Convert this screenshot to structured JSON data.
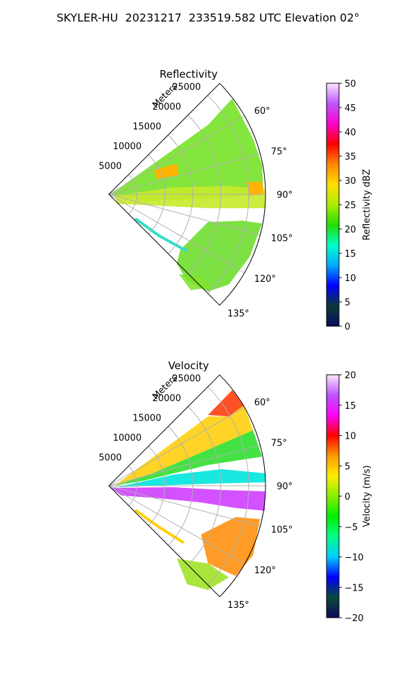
{
  "figure_title": "SKYLER-HU  20231217  233519.582 UTC Elevation 02°",
  "colors": {
    "grid": "#b0b0b0",
    "frame": "#000000"
  },
  "chart_data": [
    {
      "type": "polar-sector",
      "title": "Reflectivity",
      "radial_label": "Meters",
      "radial_ticks": [
        5000,
        10000,
        15000,
        20000,
        25000
      ],
      "radial_tick_labels": [
        "5000",
        "10000",
        "15000",
        "20000",
        "25000"
      ],
      "rmax": 28000,
      "angle_range": [
        45,
        135
      ],
      "angle_ticks": [
        60,
        75,
        90,
        105,
        120,
        135
      ],
      "angle_tick_labels": [
        "60°",
        "75°",
        "90°",
        "105°",
        "120°",
        "135°"
      ],
      "colorbar": {
        "label": "Reflectivity dBZ",
        "range": [
          0,
          50
        ],
        "ticks": [
          0,
          5,
          10,
          15,
          20,
          25,
          30,
          35,
          40,
          45,
          50
        ],
        "tick_labels": [
          "0",
          "5",
          "10",
          "15",
          "20",
          "25",
          "30",
          "35",
          "40",
          "45",
          "50"
        ],
        "stops": [
          "#0a0a5a",
          "#0a3a3a",
          "#0000ff",
          "#00aaff",
          "#00ffcc",
          "#22dd00",
          "#aaee00",
          "#ffdd00",
          "#ff8800",
          "#ff0000",
          "#ff00cc",
          "#bb55ff",
          "#ffe6ff"
        ]
      }
    },
    {
      "type": "polar-sector",
      "title": "Velocity",
      "radial_label": "Meters",
      "radial_ticks": [
        5000,
        10000,
        15000,
        20000,
        25000
      ],
      "radial_tick_labels": [
        "5000",
        "10000",
        "15000",
        "20000",
        "25000"
      ],
      "rmax": 28000,
      "angle_range": [
        45,
        135
      ],
      "angle_ticks": [
        60,
        75,
        90,
        105,
        120,
        135
      ],
      "angle_tick_labels": [
        "60°",
        "75°",
        "90°",
        "105°",
        "120°",
        "135°"
      ],
      "colorbar": {
        "label": "Velocity (m/s)",
        "range": [
          -20,
          20
        ],
        "ticks": [
          -20,
          -15,
          -10,
          -5,
          0,
          5,
          10,
          15,
          20
        ],
        "tick_labels": [
          "−20",
          "−15",
          "−10",
          "−5",
          "0",
          "5",
          "10",
          "15",
          "20"
        ],
        "stops": [
          "#0a0a5a",
          "#0a4a3a",
          "#0000ff",
          "#00ccff",
          "#00ff88",
          "#00ee00",
          "#88ee00",
          "#ffee00",
          "#ff9900",
          "#ff0000",
          "#ff00ff",
          "#bb55ff",
          "#ffe6ff"
        ]
      }
    }
  ]
}
